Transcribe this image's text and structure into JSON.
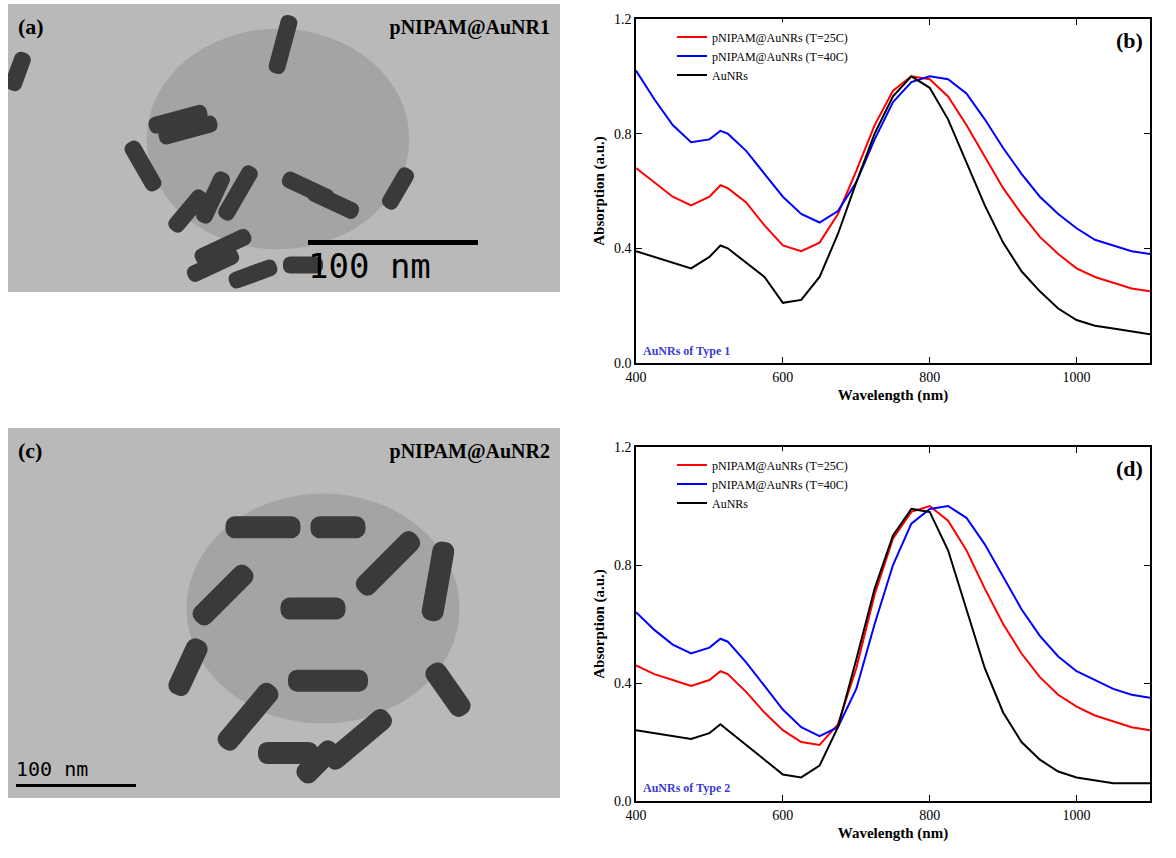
{
  "images": [
    {
      "panel": "(a)",
      "title": "pNIPAM@AuNR1",
      "scale_bar": "100 nm"
    },
    {
      "panel": "(c)",
      "title": "pNIPAM@AuNR2",
      "scale_bar": "100 nm"
    }
  ],
  "chart_data": [
    {
      "type": "line",
      "x_label": "Wavelength (nm)",
      "y_label": "Absorption (a.u.)",
      "annotations": [
        {
          "text": "(b)"
        },
        {
          "text": "AuNRs of Type 1",
          "color": "#3b3bd0"
        }
      ],
      "x": [
        400,
        425,
        450,
        475,
        500,
        515,
        525,
        550,
        575,
        600,
        625,
        650,
        675,
        700,
        725,
        750,
        775,
        800,
        825,
        850,
        875,
        900,
        925,
        950,
        975,
        1000,
        1025,
        1050,
        1075,
        1100
      ],
      "series": [
        {
          "name": "pNIPAM@AuNRs (T=25C)",
          "color": "#ff0000",
          "values": [
            0.68,
            0.63,
            0.58,
            0.55,
            0.58,
            0.62,
            0.61,
            0.56,
            0.48,
            0.41,
            0.39,
            0.42,
            0.52,
            0.67,
            0.83,
            0.95,
            1.0,
            0.99,
            0.93,
            0.83,
            0.72,
            0.61,
            0.52,
            0.44,
            0.38,
            0.33,
            0.3,
            0.28,
            0.26,
            0.25
          ]
        },
        {
          "name": "pNIPAM@AuNRs (T=40C)",
          "color": "#0000ff",
          "values": [
            1.02,
            0.92,
            0.83,
            0.77,
            0.78,
            0.81,
            0.8,
            0.74,
            0.66,
            0.58,
            0.52,
            0.49,
            0.53,
            0.63,
            0.78,
            0.91,
            0.98,
            1.0,
            0.99,
            0.94,
            0.85,
            0.75,
            0.66,
            0.58,
            0.52,
            0.47,
            0.43,
            0.41,
            0.39,
            0.38
          ]
        },
        {
          "name": "AuNRs",
          "color": "#000000",
          "values": [
            0.39,
            0.37,
            0.35,
            0.33,
            0.37,
            0.41,
            0.4,
            0.35,
            0.3,
            0.21,
            0.22,
            0.3,
            0.45,
            0.63,
            0.8,
            0.93,
            1.0,
            0.96,
            0.85,
            0.7,
            0.55,
            0.42,
            0.32,
            0.25,
            0.19,
            0.15,
            0.13,
            0.12,
            0.11,
            0.1
          ]
        }
      ],
      "xlim": [
        400,
        1100
      ],
      "xticks": [
        400,
        600,
        800,
        1000
      ],
      "ylim": [
        0,
        1.2
      ],
      "yticks": [
        {
          "value": 0,
          "label": "0.0"
        },
        0.4,
        0.8,
        1.2
      ],
      "legend": "top-left",
      "grid": false
    },
    {
      "type": "line",
      "x_label": "Wavelength (nm)",
      "y_label": "Absorption (a.u.)",
      "annotations": [
        {
          "text": "(d)"
        },
        {
          "text": "AuNRs of Type 2",
          "color": "#3b3bd0"
        }
      ],
      "x": [
        400,
        425,
        450,
        475,
        500,
        515,
        525,
        550,
        575,
        600,
        625,
        650,
        675,
        700,
        725,
        750,
        775,
        800,
        825,
        850,
        875,
        900,
        925,
        950,
        975,
        1000,
        1025,
        1050,
        1075,
        1100
      ],
      "series": [
        {
          "name": "pNIPAM@AuNRs (T=25C)",
          "color": "#ff0000",
          "values": [
            0.46,
            0.43,
            0.41,
            0.39,
            0.41,
            0.44,
            0.43,
            0.37,
            0.3,
            0.24,
            0.2,
            0.19,
            0.26,
            0.45,
            0.7,
            0.89,
            0.98,
            1.0,
            0.95,
            0.85,
            0.72,
            0.6,
            0.5,
            0.42,
            0.36,
            0.32,
            0.29,
            0.27,
            0.25,
            0.24
          ]
        },
        {
          "name": "pNIPAM@AuNRs (T=40C)",
          "color": "#0000ff",
          "values": [
            0.64,
            0.58,
            0.53,
            0.5,
            0.52,
            0.55,
            0.54,
            0.47,
            0.39,
            0.31,
            0.25,
            0.22,
            0.25,
            0.38,
            0.6,
            0.8,
            0.94,
            0.99,
            1.0,
            0.96,
            0.87,
            0.76,
            0.65,
            0.56,
            0.49,
            0.44,
            0.41,
            0.38,
            0.36,
            0.35
          ]
        },
        {
          "name": "AuNRs",
          "color": "#000000",
          "values": [
            0.24,
            0.23,
            0.22,
            0.21,
            0.23,
            0.26,
            0.24,
            0.19,
            0.14,
            0.09,
            0.08,
            0.12,
            0.25,
            0.48,
            0.72,
            0.9,
            0.99,
            0.98,
            0.85,
            0.65,
            0.45,
            0.3,
            0.2,
            0.14,
            0.1,
            0.08,
            0.07,
            0.06,
            0.06,
            0.06
          ]
        }
      ],
      "xlim": [
        400,
        1100
      ],
      "xticks": [
        400,
        600,
        800,
        1000
      ],
      "ylim": [
        0,
        1.2
      ],
      "yticks": [
        {
          "value": 0,
          "label": "0.0"
        },
        0.4,
        0.8,
        1.2
      ],
      "legend": "top-left",
      "grid": false
    }
  ]
}
